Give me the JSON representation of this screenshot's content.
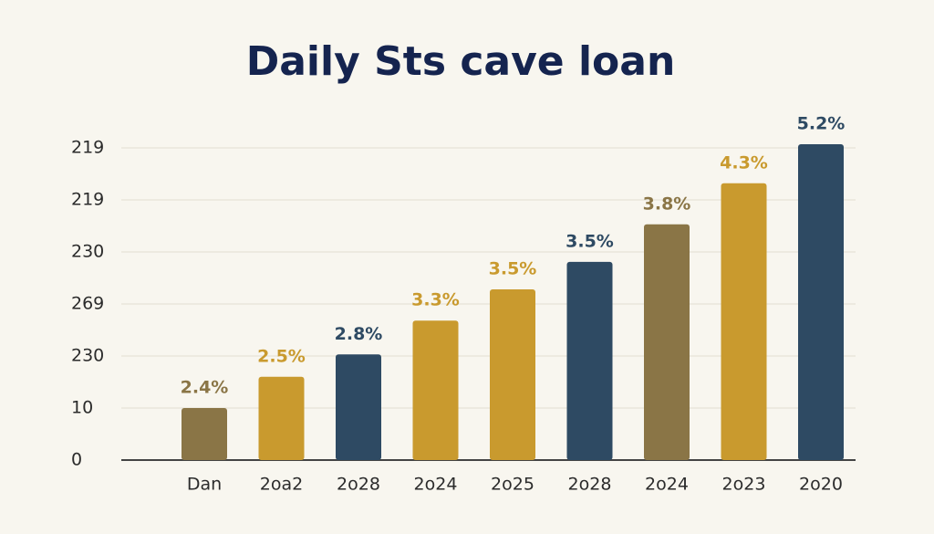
{
  "chart_data": {
    "type": "bar",
    "title": "Daily Sts cave loan",
    "categories": [
      "Dan",
      "2oa2",
      "2o28",
      "2o24",
      "2o25",
      "2o28",
      "2o24",
      "2o23",
      "2o20"
    ],
    "values": [
      1.0,
      1.6,
      2.03,
      2.68,
      3.28,
      3.81,
      4.53,
      5.32,
      6.07
    ],
    "value_labels": [
      "2.4%",
      "2.5%",
      "2.8%",
      "3.3%",
      "3.5%",
      "3.5%",
      "3.8%",
      "4.3%",
      "5.2%"
    ],
    "colors": [
      "#8a7546",
      "#c99a2e",
      "#2e4a63",
      "#c99a2e",
      "#c99a2e",
      "#2e4a63",
      "#8a7546",
      "#c99a2e",
      "#2e4a63"
    ],
    "ylim": [
      0,
      6.2
    ],
    "yticks": [
      {
        "value": 0,
        "label": "0"
      },
      {
        "value": 1,
        "label": "10"
      },
      {
        "value": 2,
        "label": "230"
      },
      {
        "value": 3,
        "label": "269"
      },
      {
        "value": 4,
        "label": "230"
      },
      {
        "value": 5,
        "label": "219"
      },
      {
        "value": 6,
        "label": "219"
      }
    ],
    "grid": true
  }
}
